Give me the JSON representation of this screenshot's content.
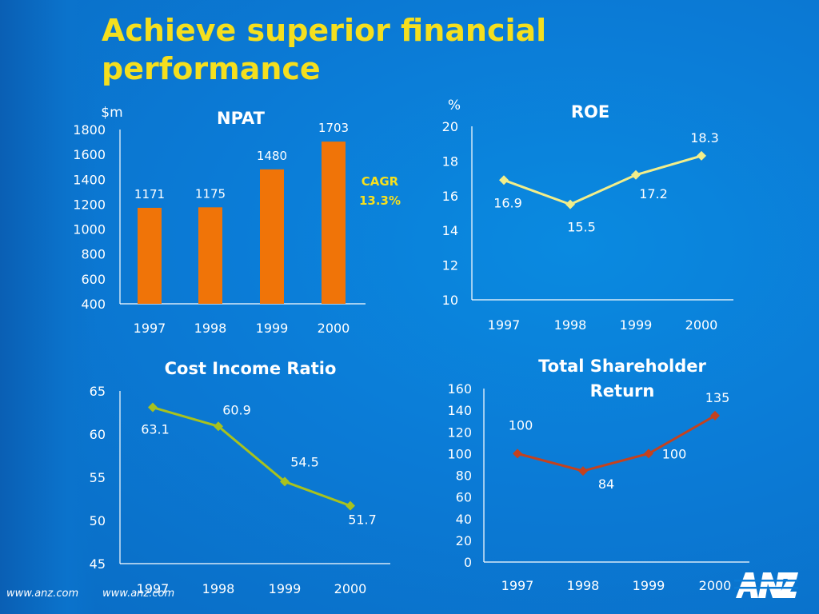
{
  "slide": {
    "title_lines": [
      "Achieve superior financial",
      "performance"
    ],
    "footer_urls": [
      "www.anz.com",
      "www.anz.com"
    ],
    "logo_text": "ANZ"
  },
  "colors": {
    "background": "#0b7bd6",
    "title": "#f5df1e",
    "bar": "#f07408",
    "roe_line": "#f2ee8a",
    "roe_marker": "#f2ee8a",
    "cir_line": "#a8c21e",
    "cir_marker": "#a8c21e",
    "tsr_line": "#c4421e",
    "tsr_marker": "#c4421e",
    "axis": "#ffffff",
    "cagr": "#f5df1e"
  },
  "chart_data": [
    {
      "type": "bar",
      "title": "NPAT",
      "ylabel": "$m",
      "categories": [
        "1997",
        "1998",
        "1999",
        "2000"
      ],
      "values": [
        1171,
        1175,
        1480,
        1703
      ],
      "data_labels": [
        "1171",
        "1175",
        "1480",
        "1703"
      ],
      "ylim": [
        400,
        1800
      ],
      "yticks": [
        400,
        600,
        800,
        1000,
        1200,
        1400,
        1600,
        1800
      ],
      "annotation": [
        "CAGR",
        "13.3%"
      ],
      "grid": false
    },
    {
      "type": "line",
      "title": "ROE",
      "ylabel": "%",
      "categories": [
        "1997",
        "1998",
        "1999",
        "2000"
      ],
      "values": [
        16.9,
        15.5,
        17.2,
        18.3
      ],
      "data_labels": [
        "16.9",
        "15.5",
        "17.2",
        "18.3"
      ],
      "ylim": [
        10,
        20
      ],
      "yticks": [
        10,
        12,
        14,
        16,
        18,
        20
      ],
      "grid": false
    },
    {
      "type": "line",
      "title": "Cost Income Ratio",
      "categories": [
        "1997",
        "1998",
        "1999",
        "2000"
      ],
      "values": [
        63.1,
        60.9,
        54.5,
        51.7
      ],
      "data_labels": [
        "63.1",
        "60.9",
        "54.5",
        "51.7"
      ],
      "ylim": [
        45,
        65
      ],
      "yticks": [
        45,
        50,
        55,
        60,
        65
      ],
      "grid": false
    },
    {
      "type": "line",
      "title_lines": [
        "Total Shareholder",
        "Return"
      ],
      "categories": [
        "1997",
        "1998",
        "1999",
        "2000"
      ],
      "values": [
        100,
        84,
        100,
        135
      ],
      "data_labels": [
        "100",
        "84",
        "100",
        "135"
      ],
      "ylim": [
        0,
        160
      ],
      "yticks": [
        0,
        20,
        40,
        60,
        80,
        100,
        120,
        140,
        160
      ],
      "grid": false
    }
  ]
}
